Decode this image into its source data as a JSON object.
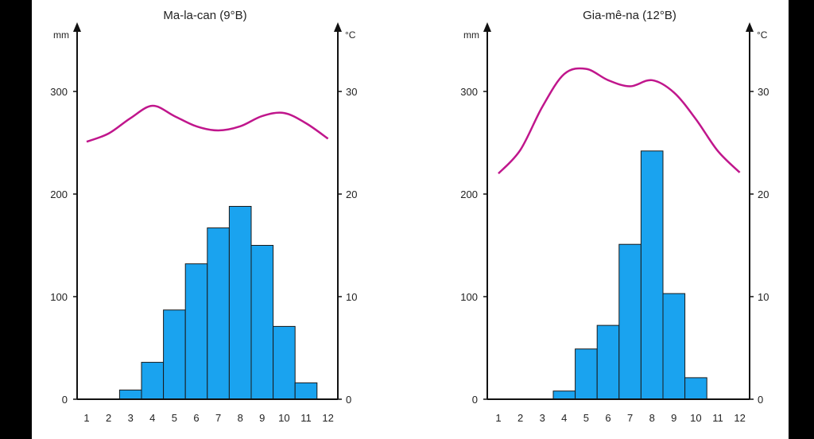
{
  "colors": {
    "background": "#000000",
    "panel": "#ffffff",
    "bar_fill": "#1aa3ef",
    "bar_stroke": "#1a1a1a",
    "temperature_line": "#c0168c",
    "axis": "#111111"
  },
  "chart_data": [
    {
      "type": "bar",
      "title": "Ma-la-can (9°B)",
      "left_axis_unit": "mm",
      "right_axis_unit": "°C",
      "left_ticks": [
        "0",
        "100",
        "200",
        "300"
      ],
      "right_ticks": [
        "0",
        "10",
        "20",
        "30"
      ],
      "ylim_precipitation": [
        0,
        300
      ],
      "ylim_temperature": [
        0,
        30
      ],
      "categories": [
        "1",
        "2",
        "3",
        "4",
        "5",
        "6",
        "7",
        "8",
        "9",
        "10",
        "11",
        "12"
      ],
      "precipitation": [
        0,
        0,
        9,
        36,
        87,
        132,
        167,
        188,
        150,
        71,
        16,
        0
      ],
      "temperature": [
        25.1,
        25.9,
        27.4,
        28.6,
        27.6,
        26.6,
        26.2,
        26.6,
        27.6,
        27.9,
        26.9,
        25.4
      ]
    },
    {
      "type": "bar",
      "title": "Gia-mê-na (12°B)",
      "left_axis_unit": "mm",
      "right_axis_unit": "°C",
      "left_ticks": [
        "0",
        "100",
        "200",
        "300"
      ],
      "right_ticks": [
        "0",
        "10",
        "20",
        "30"
      ],
      "ylim_precipitation": [
        0,
        300
      ],
      "ylim_temperature": [
        0,
        30
      ],
      "categories": [
        "1",
        "2",
        "3",
        "4",
        "5",
        "6",
        "7",
        "8",
        "9",
        "10",
        "11",
        "12"
      ],
      "precipitation": [
        0,
        0,
        0,
        8,
        49,
        72,
        151,
        242,
        103,
        21,
        0,
        0
      ],
      "temperature": [
        22.0,
        24.3,
        28.5,
        31.7,
        32.2,
        31.1,
        30.5,
        31.1,
        29.9,
        27.3,
        24.2,
        22.1
      ]
    }
  ]
}
